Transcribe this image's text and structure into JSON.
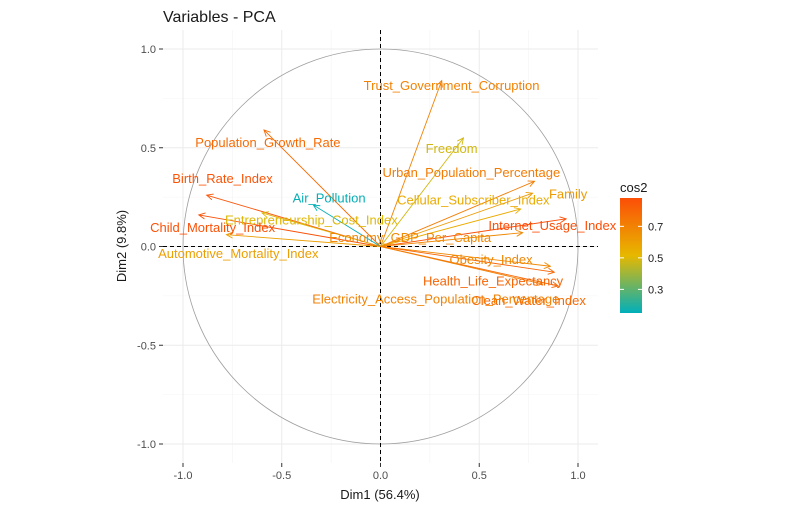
{
  "chart_data": {
    "type": "scatter",
    "title": "Variables - PCA",
    "xlabel": "Dim1 (56.4%)",
    "ylabel": "Dim2 (9.8%)",
    "xlim": [
      -1.1,
      1.1
    ],
    "ylim": [
      -1.1,
      1.1
    ],
    "xticks": [
      -1.0,
      -0.5,
      0.0,
      0.5,
      1.0
    ],
    "xtick_labels": [
      "-1.0",
      "-0.5",
      "0.0",
      "0.5",
      "1.0"
    ],
    "yticks": [
      -1.0,
      -0.5,
      0.0,
      0.5,
      1.0
    ],
    "ytick_labels": [
      "-1.0",
      "-0.5",
      "0.0",
      "0.5",
      "1.0"
    ],
    "grid": true,
    "unit_circle": true,
    "legend": {
      "title": "cos2",
      "placement": "right",
      "min": 0.15,
      "max": 0.88,
      "ticks": [
        0.3,
        0.5,
        0.7
      ],
      "tick_labels": [
        "0.3",
        "0.5",
        "0.7"
      ],
      "colors": [
        "#00AFBB",
        "#E7B800",
        "#FC4E07"
      ]
    },
    "variables": [
      {
        "name": "Trust_Government_Corruption",
        "x": 0.31,
        "y": 0.84,
        "cos2": 0.7,
        "label_x": 0.36,
        "label_y": 0.81
      },
      {
        "name": "Population_Growth_Rate",
        "x": -0.59,
        "y": 0.59,
        "cos2": 0.78,
        "label_x": -0.57,
        "label_y": 0.52
      },
      {
        "name": "Freedom",
        "x": 0.42,
        "y": 0.55,
        "cos2": 0.48,
        "label_x": 0.36,
        "label_y": 0.49
      },
      {
        "name": "Urban_Population_Percentage",
        "x": 0.78,
        "y": 0.33,
        "cos2": 0.72,
        "label_x": 0.46,
        "label_y": 0.37
      },
      {
        "name": "Family",
        "x": 0.77,
        "y": 0.27,
        "cos2": 0.62,
        "label_x": 0.95,
        "label_y": 0.26
      },
      {
        "name": "Birth_Rate_Index",
        "x": -0.88,
        "y": 0.26,
        "cos2": 0.86,
        "label_x": -0.8,
        "label_y": 0.34
      },
      {
        "name": "Air_Pollution",
        "x": -0.34,
        "y": 0.21,
        "cos2": 0.16,
        "label_x": -0.26,
        "label_y": 0.24
      },
      {
        "name": "Cellular_Subscriber_Index",
        "x": 0.71,
        "y": 0.19,
        "cos2": 0.56,
        "label_x": 0.47,
        "label_y": 0.23
      },
      {
        "name": "Entrepreneurship_Cost_Index",
        "x": -0.6,
        "y": 0.17,
        "cos2": 0.5,
        "label_x": -0.35,
        "label_y": 0.13
      },
      {
        "name": "Internet_Usage_Index",
        "x": 0.94,
        "y": 0.14,
        "cos2": 0.88,
        "label_x": 0.87,
        "label_y": 0.1
      },
      {
        "name": "Child_Mortality_Index",
        "x": -0.92,
        "y": 0.16,
        "cos2": 0.87,
        "label_x": -0.85,
        "label_y": 0.09
      },
      {
        "name": "Economy_GDP_Per_Capita",
        "x": 0.72,
        "y": 0.07,
        "cos2": 0.68,
        "label_x": 0.15,
        "label_y": 0.04
      },
      {
        "name": "Automotive_Mortality_Index",
        "x": -0.78,
        "y": 0.06,
        "cos2": 0.6,
        "label_x": -0.72,
        "label_y": -0.04
      },
      {
        "name": "Obesity_Index",
        "x": 0.86,
        "y": -0.1,
        "cos2": 0.68,
        "label_x": 0.56,
        "label_y": -0.07
      },
      {
        "name": "Health_Life_Expectancy",
        "x": 0.88,
        "y": -0.13,
        "cos2": 0.8,
        "label_x": 0.57,
        "label_y": -0.18
      },
      {
        "name": "Clean_Water_Index",
        "x": 0.9,
        "y": -0.2,
        "cos2": 0.79,
        "label_x": 0.75,
        "label_y": -0.28
      },
      {
        "name": "Electricity_Access_Population_Percentage",
        "x": 0.82,
        "y": -0.19,
        "cos2": 0.7,
        "label_x": 0.28,
        "label_y": -0.27
      }
    ]
  }
}
